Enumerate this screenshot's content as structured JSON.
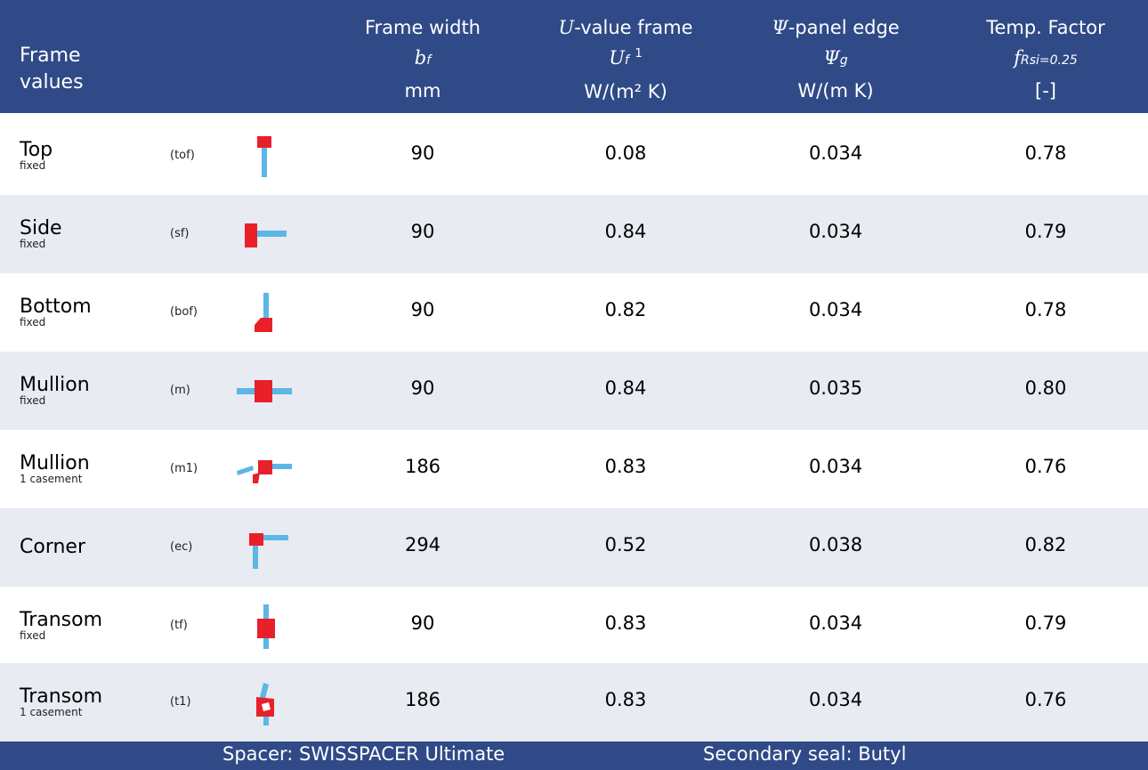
{
  "header": {
    "title_line1": "Frame",
    "title_line2": "values",
    "columns": [
      {
        "label": "Frame width",
        "symbol": "b",
        "symbol_sub": "f",
        "symbol_sup": "",
        "unit": "mm"
      },
      {
        "label_sym": "U",
        "label_rest": "-value frame",
        "symbol": "U",
        "symbol_sub": "f",
        "symbol_sup": "1",
        "unit": "W/(m² K)"
      },
      {
        "label_sym": "Ψ",
        "label_rest": "-panel edge",
        "symbol": "Ψ",
        "symbol_sub": "g",
        "symbol_sup": "",
        "unit": "W/(m K)"
      },
      {
        "label": "Temp. Factor",
        "symbol": "f",
        "symbol_sub": "Rsi=0.25",
        "symbol_sup": "",
        "unit": "[-]"
      }
    ]
  },
  "rows": [
    {
      "name": "Top",
      "qualifier": "fixed",
      "code": "(tof)",
      "icon": "top-fixed-profile-icon",
      "width": "90",
      "uf": "0.08",
      "psi": "0.034",
      "frsi": "0.78"
    },
    {
      "name": "Side",
      "qualifier": "fixed",
      "code": "(sf)",
      "icon": "side-fixed-profile-icon",
      "width": "90",
      "uf": "0.84",
      "psi": "0.034",
      "frsi": "0.79"
    },
    {
      "name": "Bottom",
      "qualifier": "fixed",
      "code": "(bof)",
      "icon": "bottom-fixed-profile-icon",
      "width": "90",
      "uf": "0.82",
      "psi": "0.034",
      "frsi": "0.78"
    },
    {
      "name": "Mullion",
      "qualifier": "fixed",
      "code": "(m)",
      "icon": "mullion-fixed-profile-icon",
      "width": "90",
      "uf": "0.84",
      "psi": "0.035",
      "frsi": "0.80"
    },
    {
      "name": "Mullion",
      "qualifier": "1 casement",
      "code": "(m1)",
      "icon": "mullion-casement-profile-icon",
      "width": "186",
      "uf": "0.83",
      "psi": "0.034",
      "frsi": "0.76"
    },
    {
      "name": "Corner",
      "qualifier": "",
      "code": "(ec)",
      "icon": "corner-profile-icon",
      "width": "294",
      "uf": "0.52",
      "psi": "0.038",
      "frsi": "0.82"
    },
    {
      "name": "Transom",
      "qualifier": "fixed",
      "code": "(tf)",
      "icon": "transom-fixed-profile-icon",
      "width": "90",
      "uf": "0.83",
      "psi": "0.034",
      "frsi": "0.79"
    },
    {
      "name": "Transom",
      "qualifier": "1 casement",
      "code": "(t1)",
      "icon": "transom-casement-profile-icon",
      "width": "186",
      "uf": "0.83",
      "psi": "0.034",
      "frsi": "0.76"
    }
  ],
  "footer": {
    "spacer": "Spacer: SWISSPACER Ultimate",
    "seal": "Secondary seal: Butyl"
  },
  "colors": {
    "header_bg": "#2f4a87",
    "row_shade": "#e8ebf2",
    "frame_red": "#e8202a",
    "glass_blue": "#5bb7e5"
  }
}
